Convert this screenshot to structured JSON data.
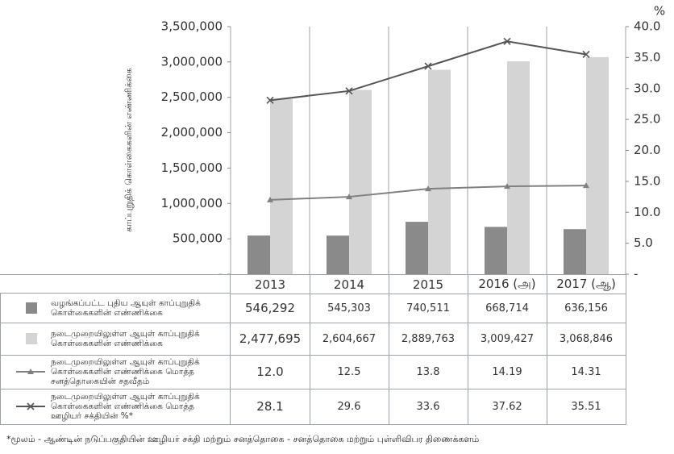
{
  "chart_data": {
    "type": "bar-line",
    "y_label": "காப்புறுதிக் கொள்கைகளின் எண்ணிக்கை",
    "y2_label": "%",
    "categories": [
      "2013",
      "2014",
      "2015",
      "2016 (அ)",
      "2017 (ஆ)"
    ],
    "ylim": [
      0,
      3500000
    ],
    "yticks": [
      {
        "value": 0,
        "label": "-"
      },
      {
        "value": 500000,
        "label": "500,000"
      },
      {
        "value": 1000000,
        "label": "1,000,000"
      },
      {
        "value": 1500000,
        "label": "1,500,000"
      },
      {
        "value": 2000000,
        "label": "2,000,000"
      },
      {
        "value": 2500000,
        "label": "2,500,000"
      },
      {
        "value": 3000000,
        "label": "3,000,000"
      },
      {
        "value": 3500000,
        "label": "3,500,000"
      }
    ],
    "y2lim": [
      0,
      40
    ],
    "y2ticks": [
      {
        "value": 0,
        "label": "-"
      },
      {
        "value": 5,
        "label": "5.0"
      },
      {
        "value": 10,
        "label": "10.0"
      },
      {
        "value": 15,
        "label": "15.0"
      },
      {
        "value": 20,
        "label": "20.0"
      },
      {
        "value": 25,
        "label": "25.0"
      },
      {
        "value": 30,
        "label": "30.0"
      },
      {
        "value": 35,
        "label": "35.0"
      },
      {
        "value": 40,
        "label": "40.0"
      }
    ],
    "series": [
      {
        "name": "வழங்கப்பட்ட புதிய ஆயுள் காப்புறுதிக் கொள்கைகளின் எண்ணிக்கை",
        "type": "bar",
        "color": "#8a8a8a",
        "values": [
          546292,
          545303,
          740511,
          668714,
          636156
        ],
        "value_labels": [
          "546,292",
          "545,303",
          "740,511",
          "668,714",
          "636,156"
        ]
      },
      {
        "name": "நடைமுறையிலுள்ள ஆயுள் காப்புறுதிக் கொள்கைகளின் எண்ணிக்கை",
        "type": "bar",
        "color": "#d4d4d4",
        "values": [
          2477695,
          2604667,
          2889763,
          3009427,
          3068846
        ],
        "value_labels": [
          "2,477,695",
          "2,604,667",
          "2,889,763",
          "3,009,427",
          "3,068,846"
        ]
      },
      {
        "name": "நடைமுறையிலுள்ள ஆயுள் காப்புறுதிக் கொள்கைகளின் எண்ணிக்கை மொத்த சனத்தொகையின் சதவீதம்",
        "type": "line",
        "marker": "triangle",
        "axis": "y2",
        "color": "#808080",
        "values": [
          12.0,
          12.5,
          13.8,
          14.19,
          14.31
        ],
        "value_labels": [
          "12.0",
          "12.5",
          "13.8",
          "14.19",
          "14.31"
        ]
      },
      {
        "name": "நடைமுறையிலுள்ள ஆயுள் காப்புறுதிக் கொள்கைகளின் எண்ணிக்கை மொத்த ஊழியர் சக்தியின் %*",
        "type": "line",
        "marker": "x",
        "axis": "y2",
        "color": "#555555",
        "values": [
          28.1,
          29.6,
          33.6,
          37.62,
          35.51
        ],
        "value_labels": [
          "28.1",
          "29.6",
          "33.6",
          "37.62",
          "35.51"
        ]
      }
    ],
    "footnote": "*மூலம் - ஆண்டின் நடுப்பகுதியின் ஊழியர் சக்தி மற்றும் சனத்தொகை - சனத்தொகை மற்றும் புள்ளிவிபர திணைக்களம்"
  }
}
